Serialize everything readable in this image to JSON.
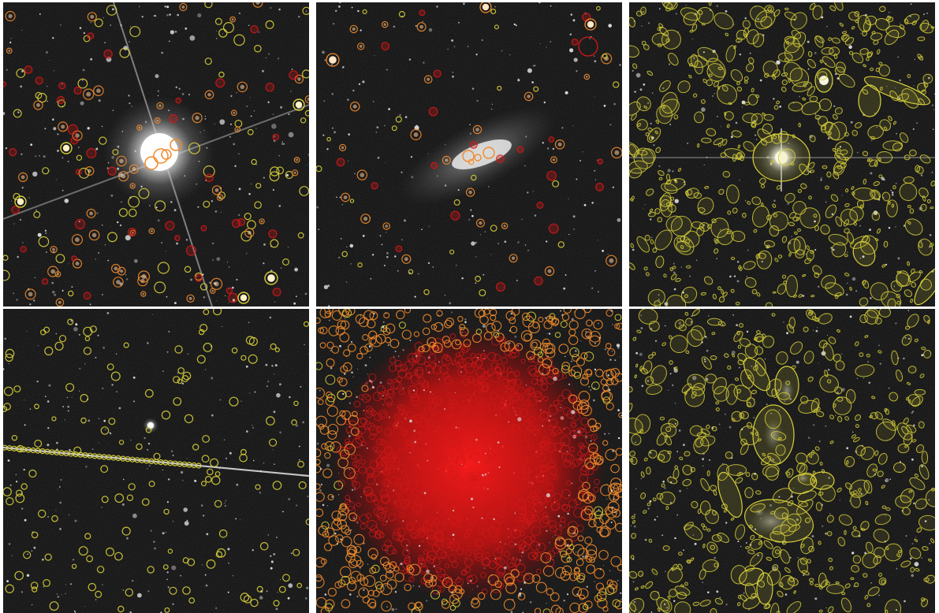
{
  "figure": {
    "panels": [
      {
        "id": "p1",
        "scene": "bright-star-with-diffraction-spikes",
        "markers": [
          "yellow",
          "orange",
          "red"
        ]
      },
      {
        "id": "p2",
        "scene": "elongated-galaxy-field",
        "markers": [
          "orange",
          "red",
          "yellow"
        ]
      },
      {
        "id": "p3",
        "scene": "dense-field-ellipse-apertures",
        "markers": [
          "yellow"
        ]
      },
      {
        "id": "p4",
        "scene": "satellite-streak-field",
        "markers": [
          "yellow"
        ]
      },
      {
        "id": "p5",
        "scene": "globular-cluster-crowded-field",
        "markers": [
          "red",
          "orange",
          "yellow"
        ]
      },
      {
        "id": "p6",
        "scene": "galaxy-group-ellipse-apertures",
        "markers": [
          "yellow"
        ]
      }
    ],
    "colors": {
      "background": "#0c0c0c",
      "yellow_marker": "#d6cf3a",
      "orange_marker": "#f08a2a",
      "red_marker": "#d21818",
      "separator": "#ffffff"
    }
  }
}
